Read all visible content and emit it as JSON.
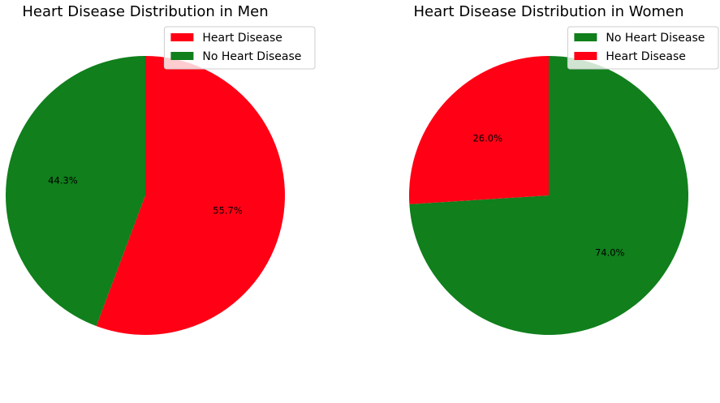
{
  "chart_data": [
    {
      "type": "pie",
      "title": "Heart Disease Distribution in Men",
      "legend_position": "top-right",
      "slices": [
        {
          "label": "Heart Disease",
          "value": 55.7,
          "label_text": "55.7%",
          "color": "#ff0015"
        },
        {
          "label": "No Heart Disease",
          "value": 44.3,
          "label_text": "44.3%",
          "color": "#107f1c"
        }
      ],
      "start_angle": 90,
      "direction": "clockwise"
    },
    {
      "type": "pie",
      "title": "Heart Disease Distribution in Women",
      "legend_position": "top-right",
      "slices": [
        {
          "label": "No Heart Disease",
          "value": 74.0,
          "label_text": "74.0%",
          "color": "#107f1c"
        },
        {
          "label": "Heart Disease",
          "value": 26.0,
          "label_text": "26.0%",
          "color": "#ff0015"
        }
      ],
      "start_angle": 90,
      "direction": "clockwise"
    }
  ]
}
